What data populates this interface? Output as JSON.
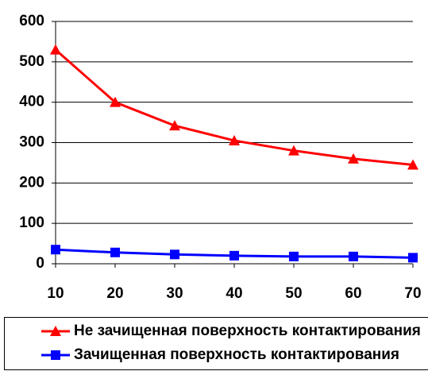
{
  "chart_data": {
    "type": "line",
    "x": [
      10,
      20,
      30,
      40,
      50,
      60,
      70
    ],
    "series": [
      {
        "name": "Не зачищенная поверхность контактирования",
        "color": "#ff0000",
        "marker": "triangle",
        "values": [
          530,
          400,
          342,
          305,
          280,
          260,
          245
        ]
      },
      {
        "name": "Зачищенная поверхность контактирования",
        "color": "#0000ff",
        "marker": "square",
        "values": [
          35,
          28,
          23,
          20,
          18,
          18,
          15
        ]
      }
    ],
    "xlim": [
      10,
      70
    ],
    "xticks": [
      10,
      20,
      30,
      40,
      50,
      60,
      70
    ],
    "ylim": [
      0,
      600
    ],
    "yticks": [
      0,
      100,
      200,
      300,
      400,
      500,
      600
    ],
    "grid": true,
    "legend": "bottom"
  }
}
